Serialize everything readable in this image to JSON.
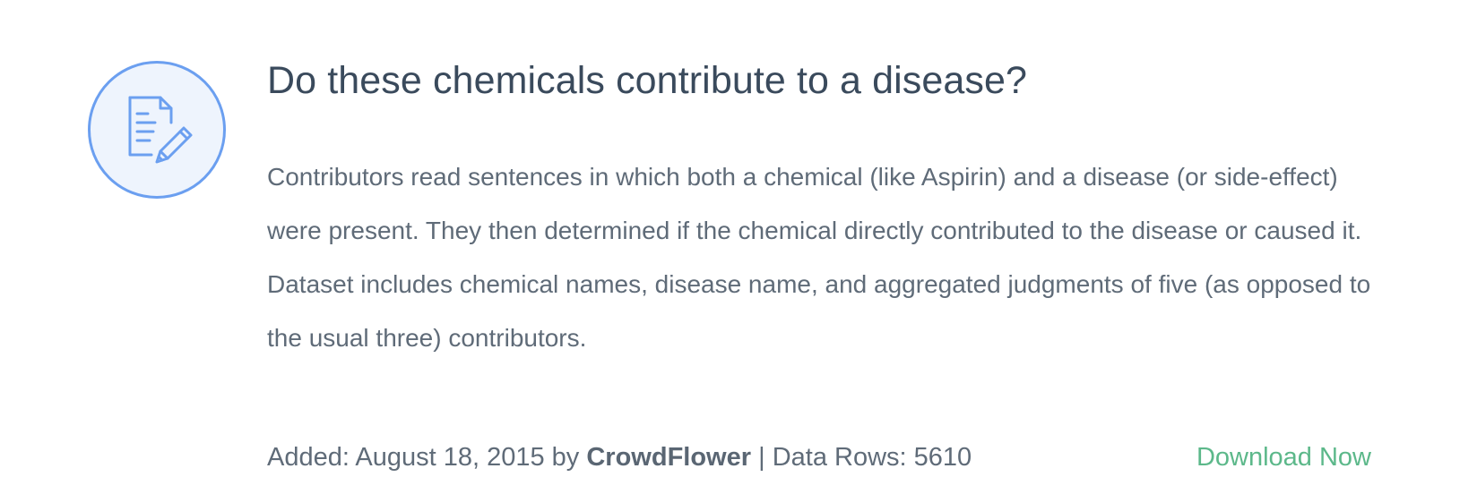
{
  "dataset": {
    "icon": "document-edit-icon",
    "title": "Do these chemicals contribute to a disease?",
    "description": "Contributors read sentences in which both a chemical (like Aspirin) and a disease (or side-effect) were present. They then determined if the chemical directly contributed to the disease or caused it. Dataset includes chemical names, disease name, and aggregated judgments of five (as opposed to the usual three) contributors.",
    "added_prefix": "Added: ",
    "added_date": "August 18, 2015",
    "by_label": " by ",
    "author": "CrowdFlower",
    "separator": " | ",
    "rows_label": "Data Rows: ",
    "rows_value": "5610",
    "download_label": "Download Now"
  },
  "colors": {
    "accent_blue": "#6b9ff0",
    "icon_background": "#eef4fd",
    "title_text": "#3a4a5c",
    "body_text": "#5f6b78",
    "download_green": "#5cb88a"
  }
}
